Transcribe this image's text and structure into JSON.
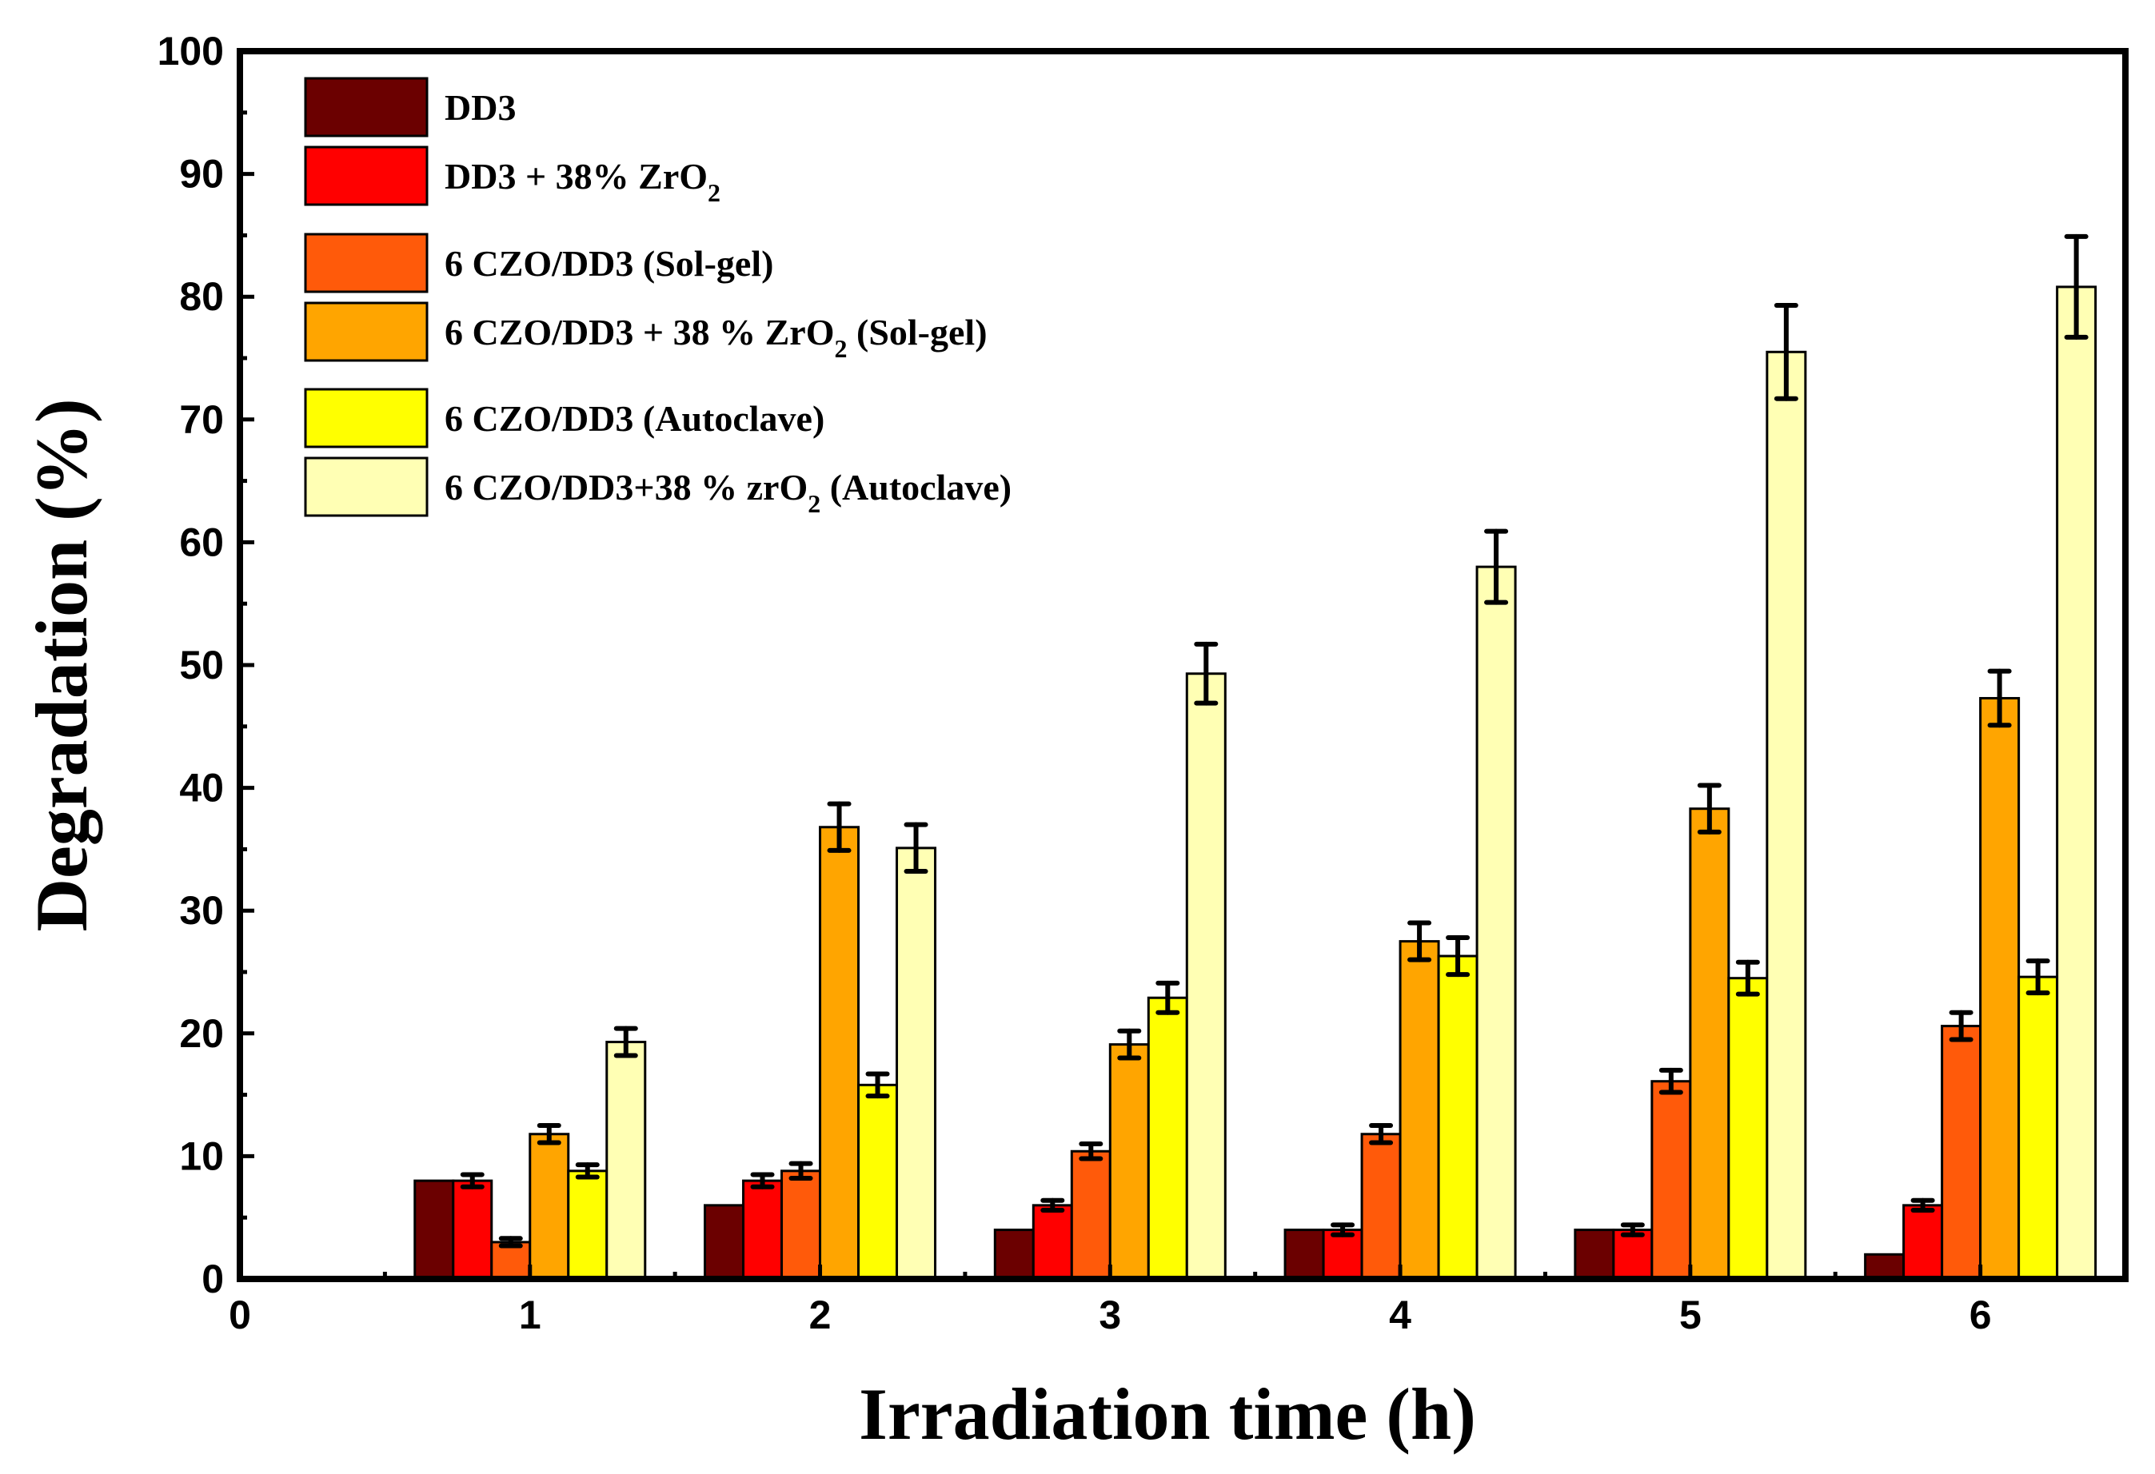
{
  "chart_data": {
    "type": "bar",
    "xlabel": "Irradiation time (h)",
    "ylabel": "Degradation (%)",
    "xlim": [
      0,
      6.5
    ],
    "ylim": [
      0,
      100
    ],
    "x_ticks": [
      0,
      1,
      2,
      3,
      4,
      5,
      6
    ],
    "y_ticks": [
      0,
      10,
      20,
      30,
      40,
      50,
      60,
      70,
      80,
      90,
      100
    ],
    "categories": [
      1,
      2,
      3,
      4,
      5,
      6
    ],
    "legend_position": "top-left",
    "series": [
      {
        "name": "DD3",
        "name_main": "DD3",
        "name_sub": "",
        "name_tail": "",
        "color": "#6b0000",
        "values": [
          8,
          6,
          4,
          4,
          4,
          2
        ],
        "errors": [
          null,
          null,
          null,
          null,
          null,
          null
        ]
      },
      {
        "name": "DD3 + 38% ZrO2",
        "name_main": "DD3 + 38% ZrO",
        "name_sub": "2",
        "name_tail": "",
        "color": "#ff0000",
        "values": [
          8,
          8,
          6,
          4,
          4,
          6
        ],
        "errors": [
          0.5,
          0.5,
          0.4,
          0.4,
          0.4,
          0.4
        ]
      },
      {
        "name": "6 CZO/DD3 (Sol-gel)",
        "name_main": "6 CZO/DD3 (Sol-gel)",
        "name_sub": "",
        "name_tail": "",
        "color": "#ff5a0a",
        "values": [
          3,
          8.8,
          10.4,
          11.8,
          16.1,
          20.6
        ],
        "errors": [
          0.3,
          0.6,
          0.6,
          0.7,
          0.9,
          1.1
        ]
      },
      {
        "name": "6 CZO/DD3 + 38 % ZrO2 (Sol-gel)",
        "name_main": "6 CZO/DD3 + 38 % ZrO",
        "name_sub": "2",
        "name_tail": " (Sol-gel)",
        "color": "#ffa500",
        "values": [
          11.8,
          36.8,
          19.1,
          27.5,
          38.3,
          47.3
        ],
        "errors": [
          0.7,
          1.9,
          1.1,
          1.5,
          1.9,
          2.2
        ]
      },
      {
        "name": "6 CZO/DD3 (Autoclave)",
        "name_main": "6 CZO/DD3 (Autoclave)",
        "name_sub": "",
        "name_tail": "",
        "color": "#ffff00",
        "values": [
          8.8,
          15.8,
          22.9,
          26.3,
          24.5,
          24.6
        ],
        "errors": [
          0.5,
          0.9,
          1.2,
          1.5,
          1.3,
          1.3
        ]
      },
      {
        "name": "6 CZO/DD3+38 % zrO2 (Autoclave)",
        "name_main": "6 CZO/DD3+38 % zrO",
        "name_sub": "2",
        "name_tail": " (Autoclave)",
        "color": "#ffffb4",
        "values": [
          19.3,
          35.1,
          49.3,
          58,
          75.5,
          80.8
        ],
        "errors": [
          1.1,
          1.9,
          2.4,
          2.9,
          3.8,
          4.1
        ]
      }
    ]
  }
}
